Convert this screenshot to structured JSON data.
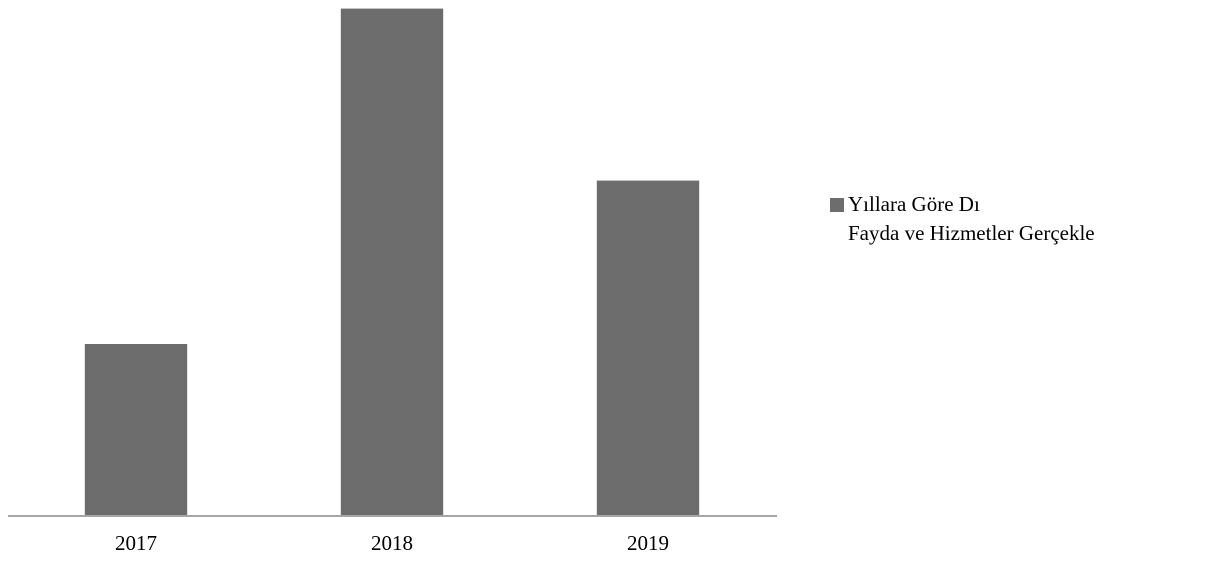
{
  "chart_data": {
    "type": "bar",
    "categories": [
      "2017",
      "2018",
      "2019"
    ],
    "series": [
      {
        "name": "Yıllara Göre Dı\nFayda ve Hizmetler Gerçekle",
        "color": "#6d6d6d",
        "values": [
          200,
          590,
          390
        ]
      }
    ],
    "ylim": [
      0,
      600
    ]
  }
}
